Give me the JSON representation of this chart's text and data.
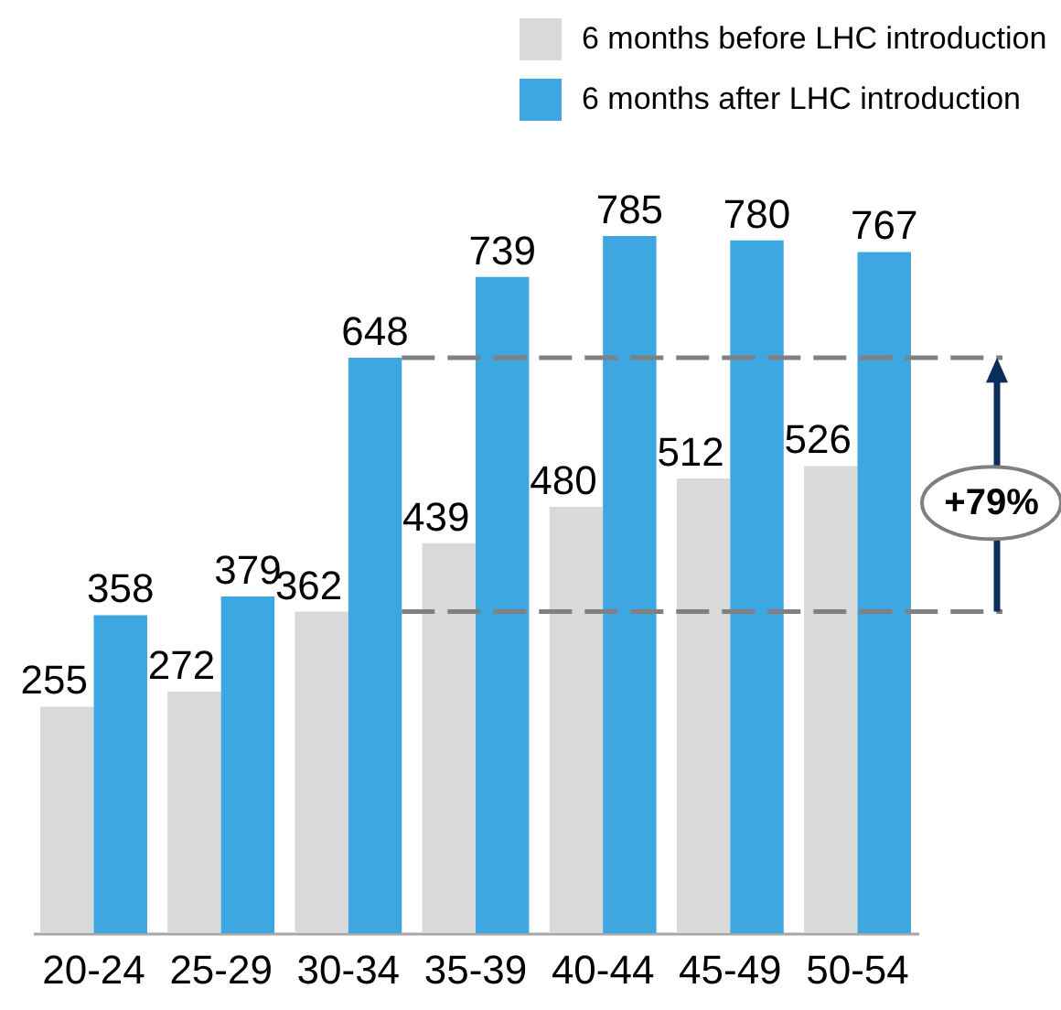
{
  "chart_data": {
    "type": "bar",
    "categories": [
      "20-24",
      "25-29",
      "30-34",
      "35-39",
      "40-44",
      "45-49",
      "50-54"
    ],
    "series": [
      {
        "name": "6 months before LHC introduction",
        "color": "#d9d9d9",
        "values": [
          255,
          272,
          362,
          439,
          480,
          512,
          526
        ]
      },
      {
        "name": "6 months after LHC introduction",
        "color": "#3ea6e0",
        "values": [
          358,
          379,
          648,
          739,
          785,
          780,
          767
        ]
      }
    ],
    "data_labels": true,
    "legend": "top right",
    "ref_lines": [
      {
        "axis": "y",
        "value": 648,
        "color": "#808080",
        "line_style": "dashed"
      },
      {
        "axis": "y",
        "value": 362,
        "color": "#808080",
        "line_style": "dashed"
      }
    ],
    "annotations": [
      "+79%"
    ]
  }
}
